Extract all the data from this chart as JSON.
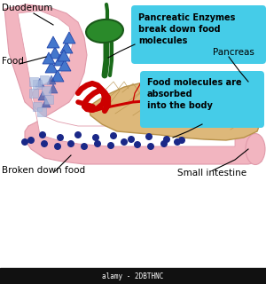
{
  "bg_color": "#ffffff",
  "duodenum_color": "#f2b5c0",
  "duodenum_outline": "#e09aaa",
  "pancreas_color": "#ddb87a",
  "pancreas_outline": "#b8924a",
  "gallbladder_color": "#2a8a2a",
  "gallbladder_outline": "#1a5a1a",
  "duct_color": "#1a6b1a",
  "blood_vessel_color": "#cc0000",
  "small_intestine_color": "#f2b5c0",
  "box_color": "#45cce8",
  "food_triangle_color": "#4477cc",
  "broken_food_dot_color": "#1a2888",
  "mixed_food_color": "#aabbdd",
  "mixed_food_tri_color": "#3355aa",
  "label_color": "#111111",
  "title_bar": "alamy - 2DBTHNC",
  "title_bar_color": "#111111",
  "title_bar_text_color": "#ffffff",
  "box1_text": "Pancreatic Enzymes\nbreak down food\nmolecules",
  "box2_text": "Food molecules are\nabsorbed\ninto the body",
  "label_duodenum": "Duodenum",
  "label_food": "Food",
  "label_pancreas": "Pancreas",
  "label_broken": "Broken down food",
  "label_small": "Small intestine"
}
